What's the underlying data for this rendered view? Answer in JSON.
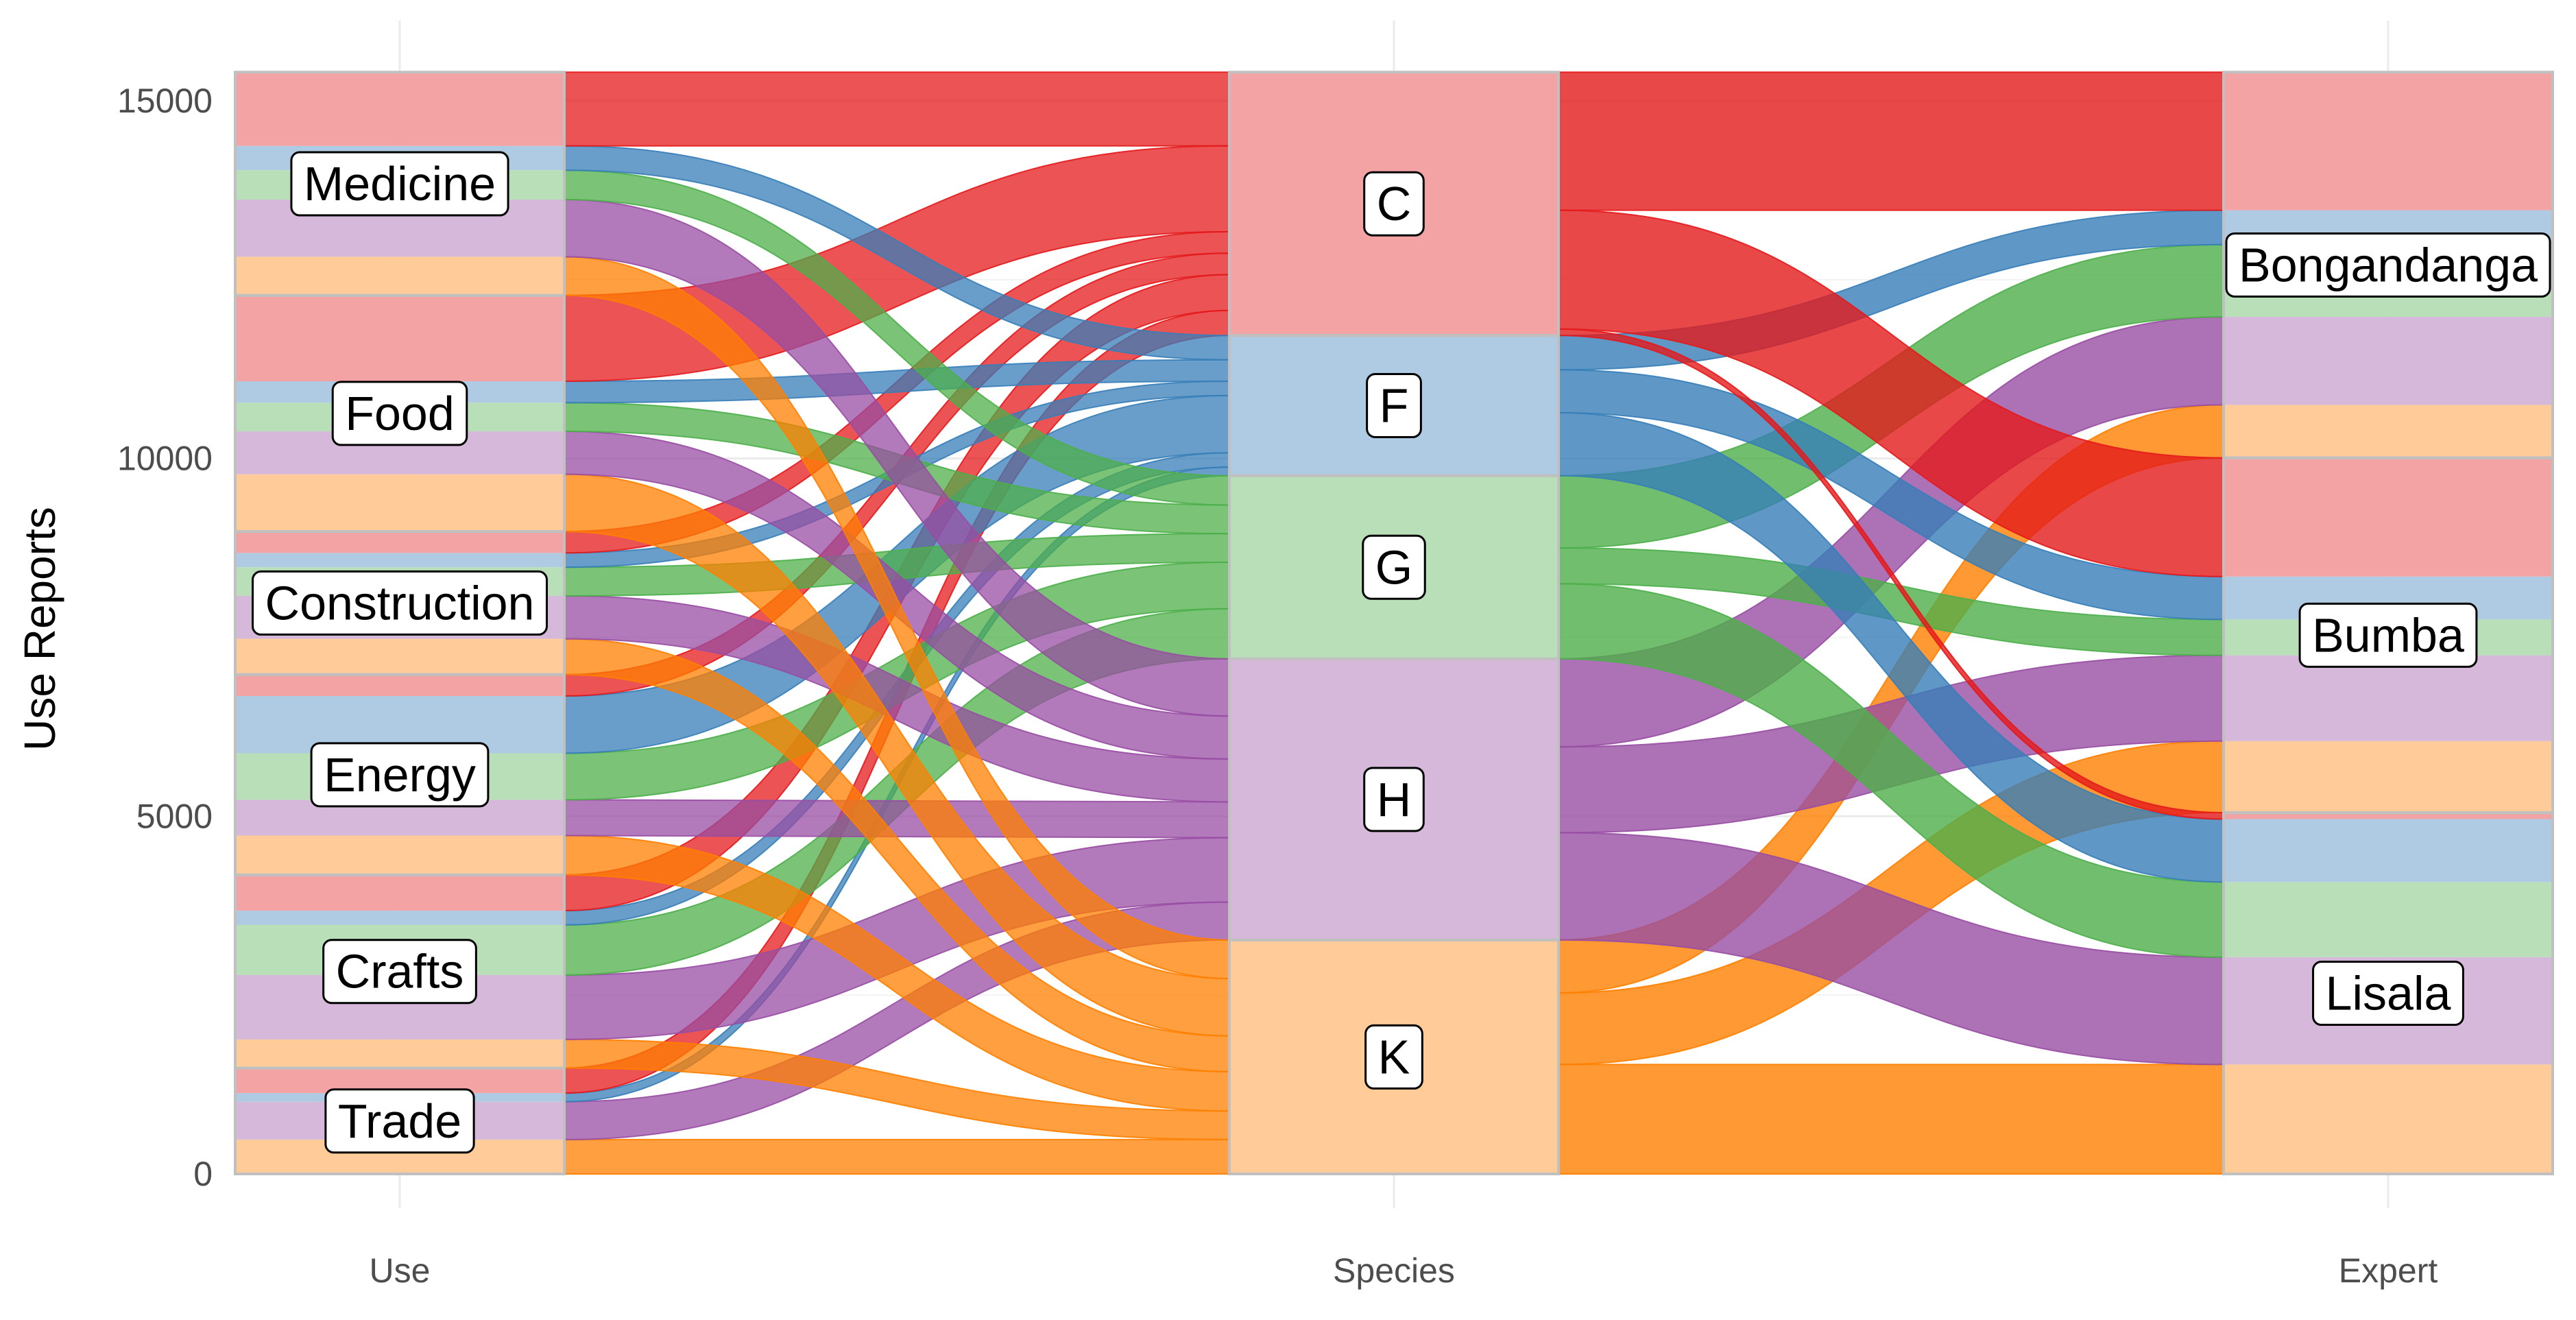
{
  "chart_data": {
    "type": "alluvial",
    "title": "",
    "ylabel": "Use Reports",
    "xlabel": "",
    "ylim": [
      0,
      15400
    ],
    "yticks": [
      0,
      5000,
      10000,
      15000
    ],
    "y_tick_labels": [
      "0",
      "5000",
      "10000",
      "15000"
    ],
    "axes": [
      "Use",
      "Species",
      "Expert"
    ],
    "axis_labels": {
      "Use": "Use",
      "Species": "Species",
      "Expert": "Expert"
    },
    "fill_by": "Species",
    "grid": true,
    "legend": "none",
    "colors": {
      "C": "#e41a1c",
      "F": "#377eb8",
      "G": "#4daf4a",
      "H": "#984ea3",
      "K": "#ff7f00"
    },
    "strata": {
      "Use": [
        {
          "name": "Trade",
          "value": 1480
        },
        {
          "name": "Crafts",
          "value": 2700
        },
        {
          "name": "Energy",
          "value": 2800
        },
        {
          "name": "Construction",
          "value": 2000
        },
        {
          "name": "Food",
          "value": 3300
        },
        {
          "name": "Medicine",
          "value": 3120
        }
      ],
      "Species": [
        {
          "name": "K",
          "value": 3270
        },
        {
          "name": "H",
          "value": 3930
        },
        {
          "name": "G",
          "value": 2560
        },
        {
          "name": "F",
          "value": 1960
        },
        {
          "name": "C",
          "value": 3680
        }
      ],
      "Expert": [
        {
          "name": "Lisala",
          "value": 5050
        },
        {
          "name": "Bumba",
          "value": 4960
        },
        {
          "name": "Bongandanga",
          "value": 5390
        }
      ]
    },
    "flows": {
      "Use_Species": [
        {
          "from": "Trade",
          "species": "K",
          "value": 480
        },
        {
          "from": "Trade",
          "species": "H",
          "value": 530
        },
        {
          "from": "Trade",
          "species": "F",
          "value": 120
        },
        {
          "from": "Trade",
          "species": "C",
          "value": 350
        },
        {
          "from": "Crafts",
          "species": "K",
          "value": 400
        },
        {
          "from": "Crafts",
          "species": "H",
          "value": 900
        },
        {
          "from": "Crafts",
          "species": "G",
          "value": 700
        },
        {
          "from": "Crafts",
          "species": "F",
          "value": 200
        },
        {
          "from": "Crafts",
          "species": "C",
          "value": 500
        },
        {
          "from": "Energy",
          "species": "K",
          "value": 550
        },
        {
          "from": "Energy",
          "species": "H",
          "value": 500
        },
        {
          "from": "Energy",
          "species": "G",
          "value": 650
        },
        {
          "from": "Energy",
          "species": "F",
          "value": 800
        },
        {
          "from": "Energy",
          "species": "C",
          "value": 300
        },
        {
          "from": "Construction",
          "species": "K",
          "value": 500
        },
        {
          "from": "Construction",
          "species": "H",
          "value": 600
        },
        {
          "from": "Construction",
          "species": "G",
          "value": 400
        },
        {
          "from": "Construction",
          "species": "F",
          "value": 200
        },
        {
          "from": "Construction",
          "species": "C",
          "value": 300
        },
        {
          "from": "Food",
          "species": "K",
          "value": 800
        },
        {
          "from": "Food",
          "species": "H",
          "value": 600
        },
        {
          "from": "Food",
          "species": "G",
          "value": 400
        },
        {
          "from": "Food",
          "species": "F",
          "value": 300
        },
        {
          "from": "Food",
          "species": "C",
          "value": 1200
        },
        {
          "from": "Medicine",
          "species": "K",
          "value": 540
        },
        {
          "from": "Medicine",
          "species": "H",
          "value": 800
        },
        {
          "from": "Medicine",
          "species": "G",
          "value": 410
        },
        {
          "from": "Medicine",
          "species": "F",
          "value": 340
        },
        {
          "from": "Medicine",
          "species": "C",
          "value": 1030
        }
      ],
      "Species_Expert": [
        {
          "species": "K",
          "to": "Lisala",
          "value": 1530
        },
        {
          "species": "K",
          "to": "Bumba",
          "value": 1000
        },
        {
          "species": "K",
          "to": "Bongandanga",
          "value": 740
        },
        {
          "species": "H",
          "to": "Lisala",
          "value": 1500
        },
        {
          "species": "H",
          "to": "Bumba",
          "value": 1200
        },
        {
          "species": "H",
          "to": "Bongandanga",
          "value": 1230
        },
        {
          "species": "G",
          "to": "Lisala",
          "value": 1050
        },
        {
          "species": "G",
          "to": "Bumba",
          "value": 500
        },
        {
          "species": "G",
          "to": "Bongandanga",
          "value": 1010
        },
        {
          "species": "F",
          "to": "Lisala",
          "value": 880
        },
        {
          "species": "F",
          "to": "Bumba",
          "value": 600
        },
        {
          "species": "F",
          "to": "Bongandanga",
          "value": 480
        },
        {
          "species": "C",
          "to": "Lisala",
          "value": 90
        },
        {
          "species": "C",
          "to": "Bumba",
          "value": 1660
        },
        {
          "species": "C",
          "to": "Bongandanga",
          "value": 1930
        }
      ]
    }
  }
}
